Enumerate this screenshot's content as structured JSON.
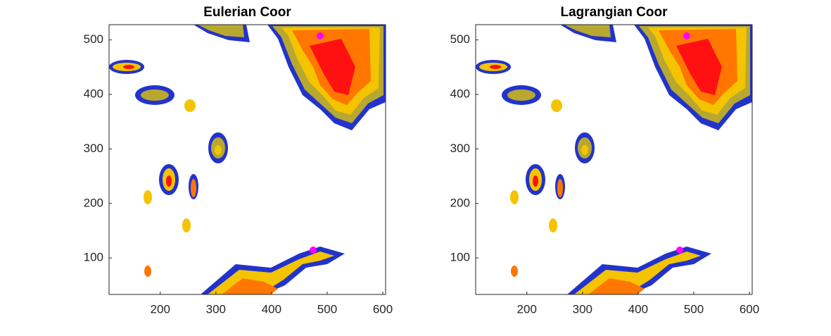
{
  "chart_data": [
    {
      "type": "image",
      "title": "Eulerian Coor",
      "xlim": [
        108,
        605
      ],
      "ylim": [
        33,
        528
      ],
      "xticks": [
        200,
        300,
        400,
        500,
        600
      ],
      "yticks": [
        100,
        200,
        300,
        400,
        500
      ]
    },
    {
      "type": "image",
      "title": "Lagrangian Coor",
      "xlim": [
        108,
        605
      ],
      "ylim": [
        33,
        528
      ],
      "xticks": [
        200,
        300,
        400,
        500,
        600
      ],
      "yticks": [
        100,
        200,
        300,
        400,
        500
      ]
    }
  ]
}
